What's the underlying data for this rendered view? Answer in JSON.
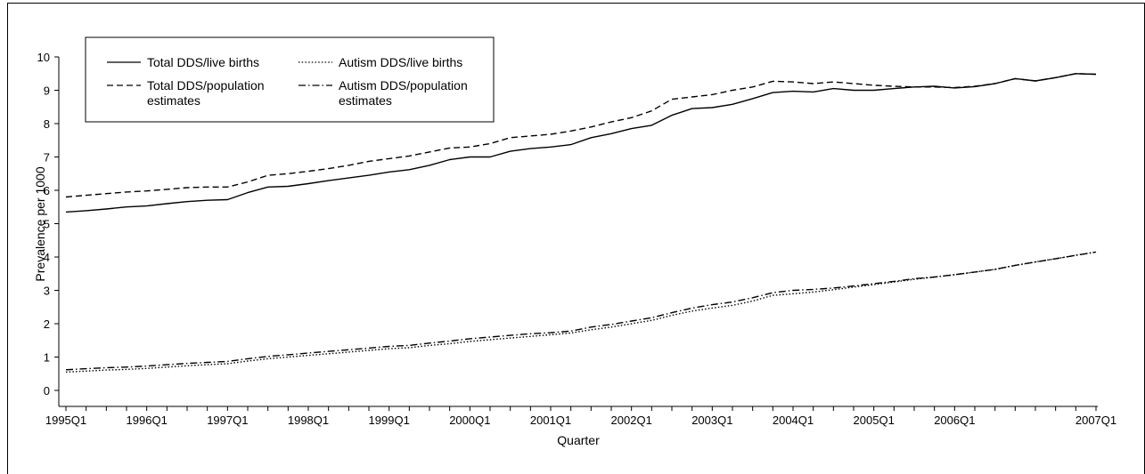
{
  "chart_data": {
    "type": "line",
    "xlabel": "Quarter",
    "ylabel": "Prevalence per 1000",
    "ylim": [
      0,
      10
    ],
    "yticks": [
      0,
      1,
      2,
      3,
      4,
      5,
      6,
      7,
      8,
      9,
      10
    ],
    "xtick_labels": [
      "1995Q1",
      "1996Q1",
      "1997Q1",
      "1998Q1",
      "1999Q1",
      "2000Q1",
      "2001Q1",
      "2002Q1",
      "2003Q1",
      "2004Q1",
      "2005Q1",
      "2006Q1",
      "2007Q1"
    ],
    "legend_position": "top-left",
    "grid": false,
    "series": [
      {
        "name": "Total DDS/live births",
        "style": "solid",
        "values": [
          5.35,
          5.39,
          5.44,
          5.5,
          5.53,
          5.6,
          5.66,
          5.7,
          5.72,
          5.93,
          6.1,
          6.12,
          6.2,
          6.29,
          6.37,
          6.45,
          6.55,
          6.62,
          6.75,
          6.92,
          7.0,
          7.0,
          7.17,
          7.25,
          7.3,
          7.37,
          7.58,
          7.7,
          7.85,
          7.95,
          8.25,
          8.45,
          8.48,
          8.58,
          8.75,
          8.93,
          8.97,
          8.95,
          9.05,
          9.0,
          9.0,
          9.05,
          9.1,
          9.12,
          9.07,
          9.11,
          9.2,
          9.35,
          9.28,
          9.38,
          9.5,
          9.48
        ]
      },
      {
        "name": "Total DDS/population estimates",
        "style": "dashed",
        "values": [
          5.8,
          5.85,
          5.9,
          5.95,
          5.98,
          6.03,
          6.08,
          6.1,
          6.1,
          6.25,
          6.45,
          6.5,
          6.57,
          6.65,
          6.75,
          6.87,
          6.95,
          7.03,
          7.15,
          7.27,
          7.3,
          7.4,
          7.58,
          7.63,
          7.68,
          7.78,
          7.9,
          8.05,
          8.18,
          8.38,
          8.73,
          8.8,
          8.87,
          9.0,
          9.1,
          9.27,
          9.25,
          9.2,
          9.25,
          9.2,
          9.15,
          9.12,
          9.1,
          9.1,
          9.08,
          9.12,
          9.2,
          9.35,
          9.28,
          9.38,
          9.5,
          9.48
        ]
      },
      {
        "name": "Autism DDS/live births",
        "style": "dotted",
        "values": [
          0.55,
          0.58,
          0.61,
          0.63,
          0.66,
          0.7,
          0.74,
          0.77,
          0.8,
          0.88,
          0.95,
          1.0,
          1.05,
          1.1,
          1.15,
          1.2,
          1.25,
          1.28,
          1.35,
          1.4,
          1.47,
          1.52,
          1.57,
          1.62,
          1.67,
          1.72,
          1.82,
          1.9,
          2.0,
          2.1,
          2.25,
          2.38,
          2.47,
          2.55,
          2.68,
          2.85,
          2.9,
          2.95,
          3.02,
          3.1,
          3.17,
          3.25,
          3.33,
          3.4,
          3.47,
          3.55,
          3.63,
          3.75,
          3.85,
          3.95,
          4.05,
          4.15
        ]
      },
      {
        "name": "Autism DDS/population estimates",
        "style": "dashdot",
        "values": [
          0.62,
          0.65,
          0.68,
          0.7,
          0.73,
          0.77,
          0.81,
          0.84,
          0.87,
          0.95,
          1.02,
          1.07,
          1.12,
          1.17,
          1.22,
          1.27,
          1.32,
          1.35,
          1.42,
          1.48,
          1.55,
          1.6,
          1.65,
          1.7,
          1.73,
          1.78,
          1.9,
          1.98,
          2.08,
          2.18,
          2.33,
          2.47,
          2.57,
          2.65,
          2.78,
          2.93,
          3.0,
          3.03,
          3.07,
          3.13,
          3.2,
          3.27,
          3.35,
          3.4,
          3.47,
          3.55,
          3.63,
          3.75,
          3.85,
          3.95,
          4.05,
          4.15
        ]
      }
    ]
  }
}
